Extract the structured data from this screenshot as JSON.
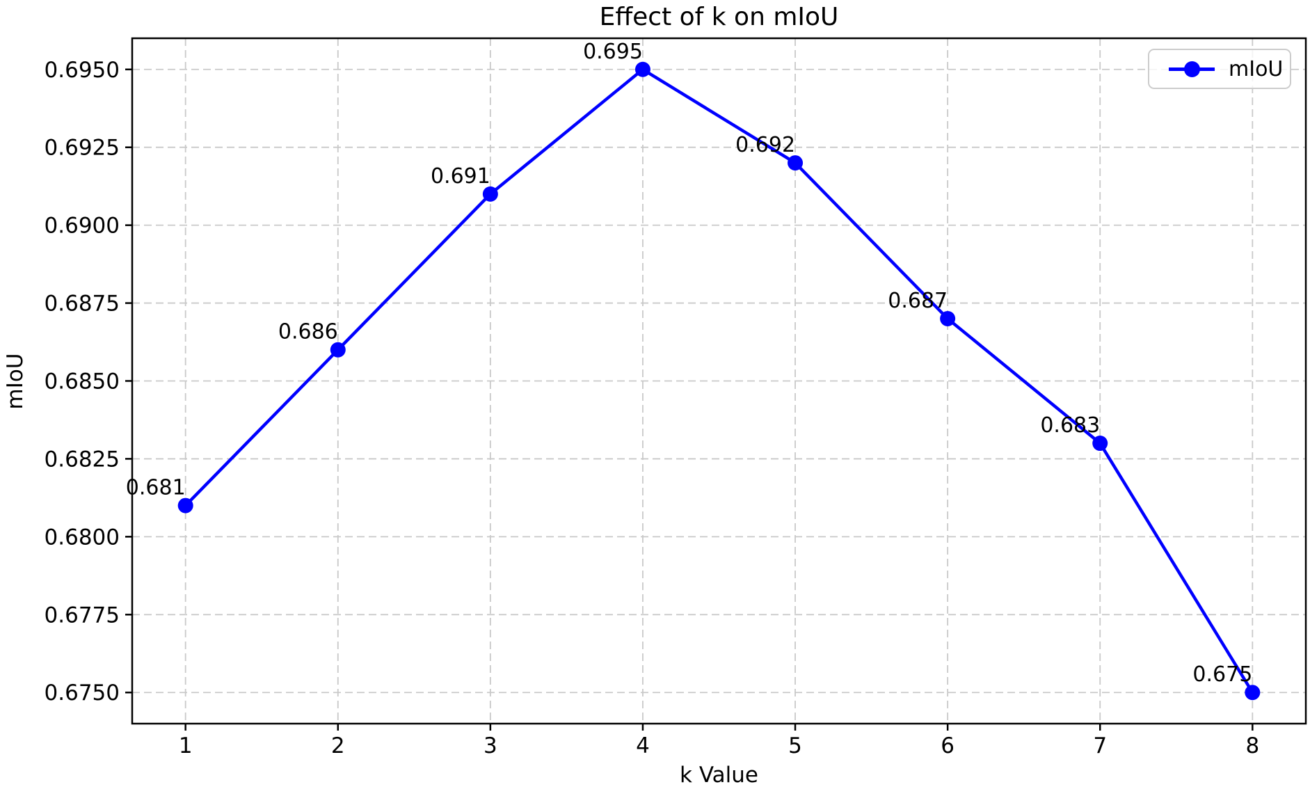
{
  "chart_data": {
    "type": "line",
    "title": "Effect of k on mIoU",
    "xlabel": "k Value",
    "ylabel": "mIoU",
    "x": [
      1,
      2,
      3,
      4,
      5,
      6,
      7,
      8
    ],
    "series": [
      {
        "name": "mIoU",
        "values": [
          0.681,
          0.686,
          0.691,
          0.695,
          0.692,
          0.687,
          0.683,
          0.675
        ],
        "color": "#0000ff",
        "marker": "circle"
      }
    ],
    "point_labels": [
      "0.681",
      "0.686",
      "0.691",
      "0.695",
      "0.692",
      "0.687",
      "0.683",
      "0.675"
    ],
    "xlim": [
      0.65,
      8.35
    ],
    "ylim": [
      0.674,
      0.696
    ],
    "xticks": {
      "values": [
        1,
        2,
        3,
        4,
        5,
        6,
        7,
        8
      ],
      "labels": [
        "1",
        "2",
        "3",
        "4",
        "5",
        "6",
        "7",
        "8"
      ]
    },
    "yticks": {
      "values": [
        0.675,
        0.6775,
        0.68,
        0.6825,
        0.685,
        0.6875,
        0.69,
        0.6925,
        0.695
      ],
      "labels": [
        "0.6750",
        "0.6775",
        "0.6800",
        "0.6825",
        "0.6850",
        "0.6875",
        "0.6900",
        "0.6925",
        "0.6950"
      ]
    },
    "grid": true,
    "grid_color": "#c9c9c9",
    "axis_color": "#000000",
    "legend": {
      "label": "mIoU",
      "position": "upper right"
    }
  }
}
